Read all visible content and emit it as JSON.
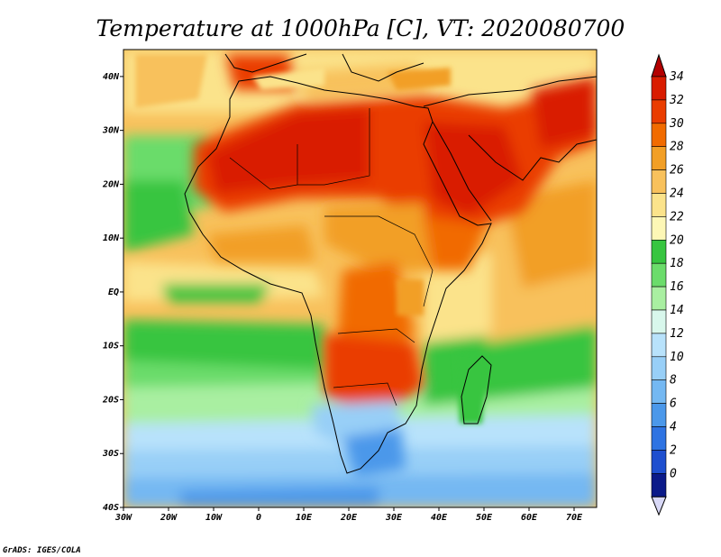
{
  "title": "Temperature at 1000hPa [C], VT: 2020080700",
  "credit": "GrADS: IGES/COLA",
  "lon_labels": [
    "30W",
    "20W",
    "10W",
    "0",
    "10E",
    "20E",
    "30E",
    "40E",
    "50E",
    "60E",
    "70E"
  ],
  "lat_labels": [
    "40N",
    "30N",
    "20N",
    "10N",
    "EQ",
    "10S",
    "20S",
    "30S",
    "40S"
  ],
  "colorbar": {
    "labels": [
      "34",
      "32",
      "30",
      "28",
      "26",
      "24",
      "22",
      "20",
      "18",
      "16",
      "14",
      "12",
      "10",
      "8",
      "6",
      "4",
      "2",
      "0"
    ],
    "colors": [
      "#d91c00",
      "#ea3d00",
      "#f16b00",
      "#f29f26",
      "#f8c15c",
      "#fbe38b",
      "#fdf7b6",
      "#37c540",
      "#6bdc6b",
      "#a9efa1",
      "#d8f7ec",
      "#b8e2fb",
      "#98cff7",
      "#74b8f2",
      "#4b98ea",
      "#2e73e2",
      "#1e4fcf",
      "#0b1a89"
    ],
    "over_color": "#b30000",
    "under_color": "#d8d8f6"
  },
  "map": {
    "lon_range": [
      -30,
      75
    ],
    "lat_range": [
      -40,
      45
    ],
    "land_line_color": "#000000"
  }
}
